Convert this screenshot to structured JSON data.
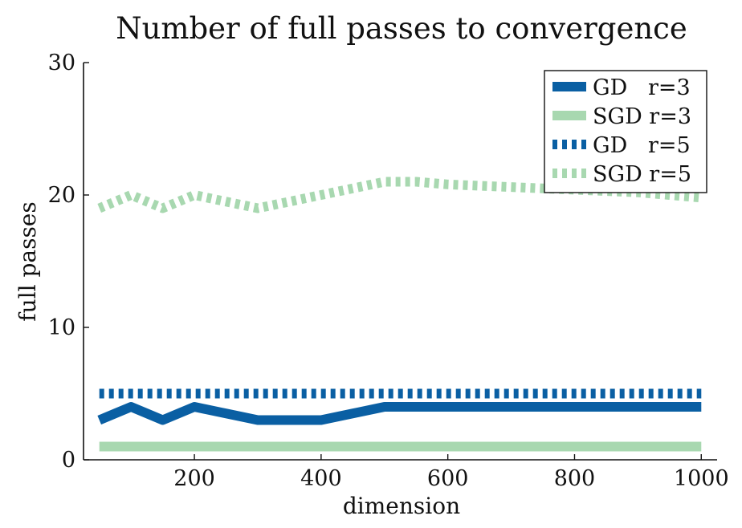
{
  "chart_data": {
    "type": "line",
    "title": "Number of full passes to convergence",
    "xlabel": "dimension",
    "ylabel": "full passes",
    "xlim": [
      25,
      1025
    ],
    "ylim": [
      0,
      30
    ],
    "xticks": [
      200,
      400,
      600,
      800,
      1000
    ],
    "yticks": [
      0,
      10,
      20,
      30
    ],
    "grid": false,
    "legend_position": "top-right",
    "series": [
      {
        "name": "GD   r=3",
        "color": "#0a5fa3",
        "style": "solid",
        "opacity": 1,
        "x": [
          50,
          100,
          150,
          200,
          250,
          300,
          350,
          400,
          450,
          500,
          550,
          600,
          650,
          700,
          750,
          800,
          850,
          900,
          950,
          1000
        ],
        "values": [
          3,
          4,
          3,
          4,
          3.5,
          3,
          3,
          3,
          3.5,
          4,
          4,
          4,
          4,
          4,
          4,
          4,
          4,
          4,
          4,
          4
        ]
      },
      {
        "name": "SGD r=3",
        "color": "#a8d8b0",
        "style": "solid",
        "opacity": 1,
        "x": [
          50,
          100,
          150,
          200,
          250,
          300,
          350,
          400,
          450,
          500,
          550,
          600,
          650,
          700,
          750,
          800,
          850,
          900,
          950,
          1000
        ],
        "values": [
          1,
          1,
          1,
          1,
          1,
          1,
          1,
          1,
          1,
          1,
          1,
          1,
          1,
          1,
          1,
          1,
          1,
          1,
          1,
          1
        ]
      },
      {
        "name": "GD   r=5",
        "color": "#0a5fa3",
        "style": "dotted",
        "opacity": 1,
        "x": [
          50,
          100,
          150,
          200,
          250,
          300,
          350,
          400,
          450,
          500,
          550,
          600,
          650,
          700,
          750,
          800,
          850,
          900,
          950,
          1000
        ],
        "values": [
          5,
          5,
          5,
          5,
          5,
          5,
          5,
          5,
          5,
          5,
          5,
          5,
          5,
          5,
          5,
          5,
          5,
          5,
          5,
          5
        ]
      },
      {
        "name": "SGD r=5",
        "color": "#a8d8b0",
        "style": "dotted",
        "opacity": 1,
        "x": [
          50,
          100,
          150,
          200,
          250,
          300,
          350,
          400,
          450,
          500,
          550,
          600,
          650,
          700,
          750,
          800,
          850,
          900,
          950,
          1000
        ],
        "values": [
          19,
          20,
          19,
          20,
          19.5,
          19,
          19.5,
          20,
          20.5,
          21,
          21,
          20.8,
          20.7,
          20.6,
          20.5,
          20.4,
          20.3,
          20.2,
          20,
          19.8
        ]
      }
    ]
  }
}
